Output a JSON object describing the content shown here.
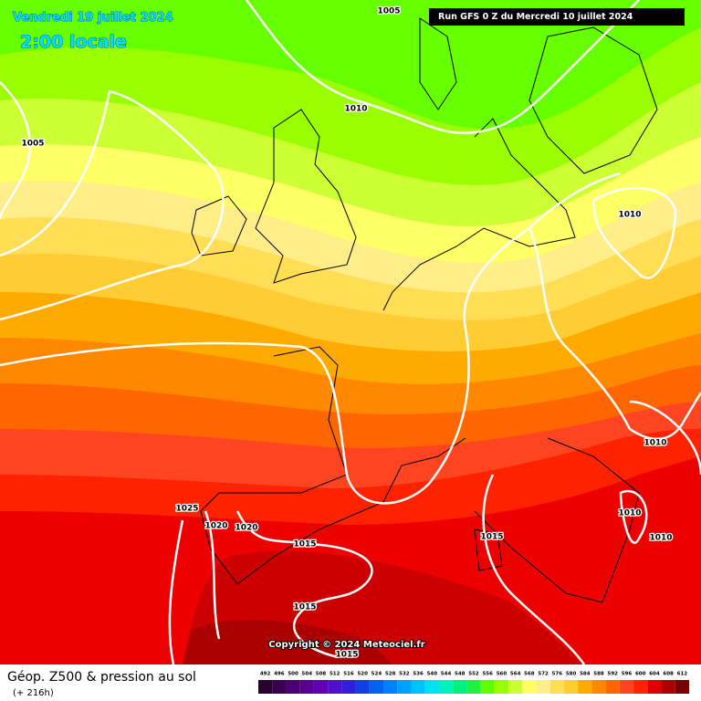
{
  "header": {
    "date": "Vendredi 19 juillet 2024",
    "time": "2:00 locale",
    "run": "Run GFS 0 Z du Mercredi 10 juillet 2024"
  },
  "isobar_labels": [
    "1005",
    "1010",
    "1005",
    "1010",
    "1010",
    "1025",
    "1020",
    "1020",
    "1010",
    "1015",
    "1015",
    "1010",
    "1015",
    "1015"
  ],
  "copyright": "Copyright © 2024 Meteociel.fr",
  "legend": {
    "title": "Géop. Z500 & pression au sol",
    "lead": "(+ 216h)",
    "scale": [
      492,
      496,
      500,
      504,
      508,
      512,
      516,
      520,
      524,
      528,
      532,
      536,
      540,
      544,
      548,
      552,
      556,
      560,
      564,
      568,
      572,
      576,
      580,
      584,
      588,
      592,
      596,
      600,
      604,
      608,
      612
    ],
    "colors": [
      "#2a0030",
      "#3a0050",
      "#4a0070",
      "#5a0090",
      "#6000b0",
      "#5010c8",
      "#3020d8",
      "#1040e0",
      "#0060f0",
      "#0080ff",
      "#00a0ff",
      "#00c0ff",
      "#00e0f0",
      "#00f0c0",
      "#00f080",
      "#20f040",
      "#60ff00",
      "#99ff00",
      "#ccff33",
      "#ffff66",
      "#ffee88",
      "#ffdd55",
      "#ffcc33",
      "#ffaa00",
      "#ff8800",
      "#ff6600",
      "#ff4422",
      "#ff2200",
      "#dd0000",
      "#aa0000",
      "#770000"
    ]
  }
}
